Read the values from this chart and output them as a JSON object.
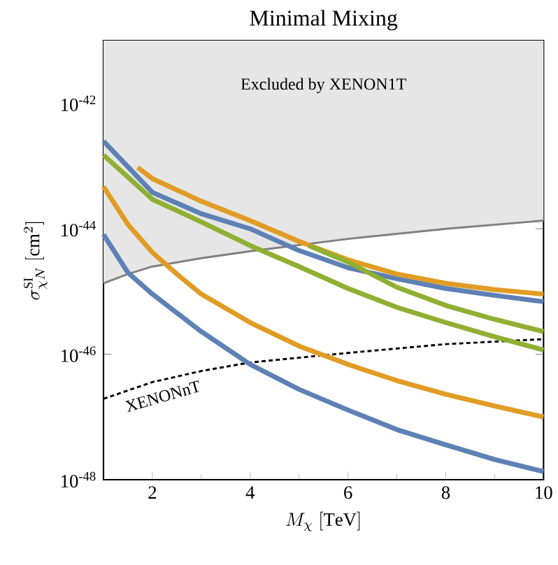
{
  "chart_data": {
    "type": "line",
    "title": "Minimal Mixing",
    "xlabel": "M_\\chi\\ [\\mathrm{TeV}]",
    "ylabel": "\\sigma_{\\chi N}^{\\rm SI}\\ [\\mathrm{cm}^2]",
    "log": "y",
    "xlim": [
      1,
      10
    ],
    "ylim": [
      1e-48,
      1e-41
    ],
    "xticks": [
      2,
      4,
      6,
      8,
      10
    ],
    "yticks": [
      {
        "value": 1e-48,
        "label": "10$^{-48}$"
      },
      {
        "value": 1e-46,
        "label": "10$^{-46}$"
      },
      {
        "value": 1e-44,
        "label": "10$^{-44}$"
      },
      {
        "value": 1e-42,
        "label": "10$^{-42}$"
      }
    ],
    "grid": false,
    "marker": "none",
    "annotations": [
      "Excluded by XENON1T",
      "XENONnT"
    ],
    "series": [
      {
        "color": "#808080",
        "x": [
          1,
          1.5,
          2,
          3,
          4,
          6,
          8,
          10
        ],
        "values": [
          1.35e-45,
          1.9e-45,
          2.5e-45,
          3.4e-45,
          4.4e-45,
          6.9e-45,
          1e-44,
          1.35e-44
        ],
        "lower": [
          1.35e-45,
          1.9e-45,
          2.5e-45,
          3.4e-45,
          4.4e-45,
          6.9e-45,
          1e-44,
          1.35e-44
        ],
        "upper": [
          1e-41,
          1e-41,
          1e-41,
          1e-41,
          1e-41,
          1e-41,
          1e-41,
          1e-41
        ]
      },
      {
        "color": "#000000",
        "line_style": "dashed",
        "x": [
          1,
          2,
          3,
          4,
          6,
          8,
          10
        ],
        "values": [
          1.95e-47,
          3.6e-47,
          5.4e-47,
          7.4e-47,
          1.05e-46,
          1.45e-46,
          1.74e-46
        ]
      },
      {
        "color": "#5e81b5",
        "x": [
          1,
          2,
          3,
          4,
          5,
          6,
          7,
          8,
          9,
          10
        ],
        "values": [
          2.5e-43,
          3.8e-44,
          1.74e-44,
          1e-44,
          4.5e-45,
          2.4e-45,
          1.6e-45,
          1.12e-45,
          8.7e-46,
          6.9e-46
        ]
      },
      {
        "color": "#5e81b5",
        "x": [
          1,
          1.5,
          2,
          3,
          4,
          5,
          6,
          7,
          8,
          9,
          10
        ],
        "values": [
          8.1e-45,
          2e-45,
          9.1e-46,
          2.3e-46,
          6.9e-47,
          2.75e-47,
          1.29e-47,
          6.3e-48,
          3.6e-48,
          2.1e-48,
          1.35e-48
        ]
      },
      {
        "color": "#e19c24",
        "x": [
          1.7,
          2,
          3,
          4,
          5,
          6,
          7,
          8,
          9,
          10
        ],
        "values": [
          9.5e-44,
          6.3e-44,
          2.75e-44,
          1.35e-44,
          6.3e-45,
          3.2e-45,
          1.9e-45,
          1.35e-45,
          1.07e-45,
          9.1e-46
        ]
      },
      {
        "color": "#e19c24",
        "x": [
          1,
          1.5,
          2,
          2.5,
          3,
          4,
          5,
          6,
          7,
          8,
          9,
          10
        ],
        "values": [
          4.7e-44,
          1.17e-44,
          4.2e-45,
          1.9e-45,
          9.1e-46,
          3.2e-46,
          1.35e-46,
          6.9e-47,
          3.8e-47,
          2.3e-47,
          1.5e-47,
          1e-47
        ]
      },
      {
        "color": "#8fb032",
        "x": [
          1,
          2,
          3,
          4,
          5,
          6,
          7,
          8,
          9,
          10
        ],
        "values": [
          1.5e-43,
          2.95e-44,
          1.29e-44,
          5.4e-45,
          2.5e-45,
          1.12e-45,
          5.6e-46,
          3.2e-46,
          1.9e-46,
          1.17e-46
        ]
      },
      {
        "color": "#8fb032",
        "x": [
          5.2,
          6,
          7,
          8,
          9,
          10
        ],
        "values": [
          5.4e-45,
          2.95e-45,
          1.17e-45,
          6e-46,
          3.6e-46,
          2.3e-46
        ]
      }
    ]
  }
}
